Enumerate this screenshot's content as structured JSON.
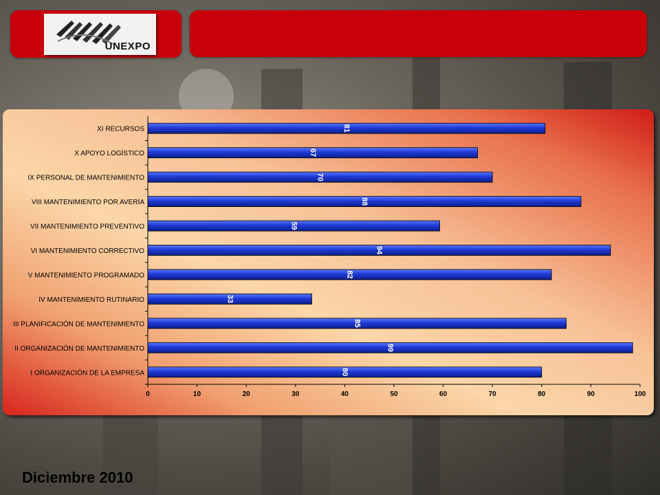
{
  "logo": {
    "text": "UNEXPO"
  },
  "footer": {
    "date": "Diciembre 2010"
  },
  "chart_data": {
    "type": "bar",
    "orientation": "horizontal",
    "categories": [
      "I  ORGANIZACIÓN DE LA EMPRESA",
      "II ORGANIZACIÓN DE MANTENIMIENTO",
      "III PLANIFICACIÓN DE MANTENIMIENTO",
      "IV MANTENIMIENTO RUTINARIO",
      "V MANTENIMIENTO PROGRAMADO",
      "VI MANTENIMIENTO CORRECTIVO",
      "VII MANTENIMIENTO PREVENTIVO",
      "VIII MANTENIMIENTO POR AVERÍA",
      "IX PERSONAL DE MANTENIMIENTO",
      "X APOYO LOGÍSTICO",
      "XI RECURSOS"
    ],
    "values": [
      80,
      98.5,
      85,
      33.3,
      82,
      94,
      59.3,
      88,
      70,
      67,
      80.7
    ],
    "data_labels": [
      "80",
      "99",
      "85",
      "33",
      "82",
      "94",
      "59",
      "88",
      "70",
      "67",
      "81"
    ],
    "xlim": [
      0,
      100
    ],
    "xticks": [
      "0",
      "10",
      "20",
      "30",
      "40",
      "50",
      "60",
      "70",
      "80",
      "90",
      "100"
    ],
    "bar_color": "#1f3ad6",
    "grid": false,
    "title": "",
    "xlabel": "",
    "ylabel": ""
  }
}
